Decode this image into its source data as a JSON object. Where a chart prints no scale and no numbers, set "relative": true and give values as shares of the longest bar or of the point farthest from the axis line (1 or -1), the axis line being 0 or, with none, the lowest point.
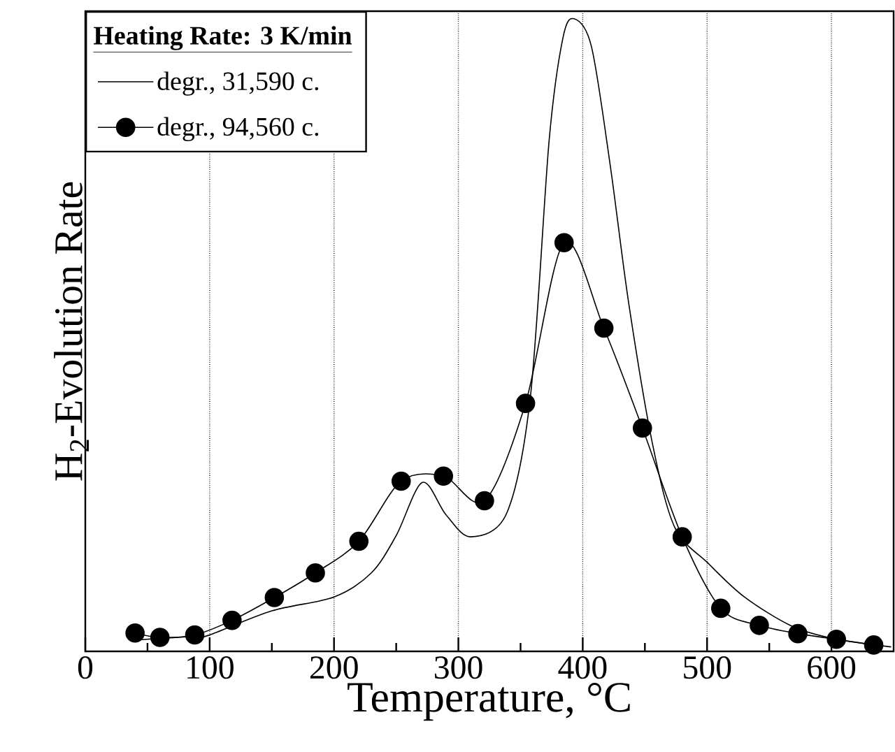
{
  "chart_data": {
    "type": "line",
    "relative": true,
    "xlabel": "Temperature,  °C",
    "ylabel": "H$_{2}$-Evolution Rate",
    "legend_title": "Heating Rate:  3 K/min",
    "legend": "top left",
    "grid": "x",
    "xlim": [
      0,
      650
    ],
    "xticks": [
      0,
      {
        "value": 50,
        "label": null
      },
      100,
      {
        "value": 150,
        "label": null
      },
      200,
      {
        "value": 250,
        "label": null
      },
      300,
      {
        "value": 350,
        "label": null
      },
      400,
      {
        "value": 450,
        "label": null
      },
      500,
      {
        "value": 550,
        "label": null
      },
      600
    ],
    "series": [
      {
        "name": "degr., 31,590 c.",
        "color": "#000000",
        "marker": "none",
        "x": [
          40,
          90,
          100,
          150,
          200,
          230,
          250,
          271,
          290,
          310,
          339,
          358,
          373,
          384,
          393,
          407,
          422,
          437,
          456,
          474,
          501,
          530,
          568,
          602,
          648
        ],
        "values": [
          0.018,
          0.024,
          0.026,
          0.064,
          0.086,
          0.124,
          0.183,
          0.267,
          0.216,
          0.181,
          0.219,
          0.404,
          0.808,
          0.969,
          1.0,
          0.956,
          0.77,
          0.55,
          0.329,
          0.196,
          0.139,
          0.086,
          0.04,
          0.02,
          0.007
        ]
      },
      {
        "name": "degr., 94,560 c.",
        "color": "#000000",
        "marker": "circle",
        "x": [
          40,
          60,
          88,
          118,
          152,
          185,
          220,
          254,
          288,
          321,
          354,
          385,
          417,
          448,
          480,
          511,
          542,
          573,
          604,
          634
        ],
        "values": [
          0.029,
          0.022,
          0.026,
          0.049,
          0.085,
          0.124,
          0.174,
          0.269,
          0.277,
          0.238,
          0.392,
          0.646,
          0.511,
          0.353,
          0.181,
          0.068,
          0.041,
          0.028,
          0.019,
          0.01
        ]
      }
    ]
  }
}
